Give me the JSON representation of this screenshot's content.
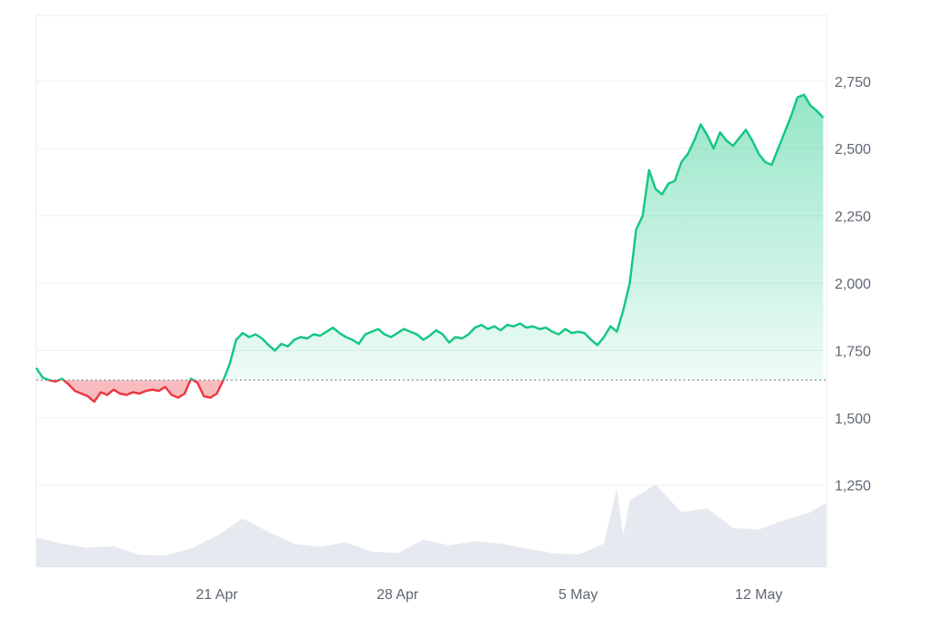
{
  "chart_data": {
    "type": "area",
    "title": "",
    "xlabel": "",
    "ylabel": "",
    "ylim": [
      1000,
      3000
    ],
    "xlim_days": [
      "2024-04-14",
      "2024-05-14"
    ],
    "y_ticks": [
      1250,
      1500,
      1750,
      2000,
      2250,
      2500,
      2750
    ],
    "y_tick_labels": [
      "1,250",
      "1,500",
      "1,750",
      "2,000",
      "2,250",
      "2,500",
      "2,750"
    ],
    "x_ticks": [
      "2024-04-21",
      "2024-04-28",
      "2024-05-05",
      "2024-05-12"
    ],
    "x_tick_labels": [
      "21 Apr",
      "28 Apr",
      "5 May",
      "12 May"
    ],
    "baseline": 1640,
    "colors": {
      "up": "#16c784",
      "down": "#ea3943",
      "volume": "#e6e9ef",
      "grid": "#eef0f3",
      "baseline": "#8a8f98"
    },
    "grid": true,
    "legend": "none",
    "series": [
      {
        "values": [
          [
            "2024-04-14T00:00",
            1685
          ],
          [
            "2024-04-14T06:00",
            1650
          ],
          [
            "2024-04-14T12:00",
            1640
          ],
          [
            "2024-04-14T18:00",
            1635
          ],
          [
            "2024-04-15T00:00",
            1645
          ],
          [
            "2024-04-15T06:00",
            1625
          ],
          [
            "2024-04-15T12:00",
            1600
          ],
          [
            "2024-04-15T18:00",
            1590
          ],
          [
            "2024-04-16T00:00",
            1580
          ],
          [
            "2024-04-16T06:00",
            1560
          ],
          [
            "2024-04-16T12:00",
            1595
          ],
          [
            "2024-04-16T18:00",
            1585
          ],
          [
            "2024-04-17T00:00",
            1605
          ],
          [
            "2024-04-17T06:00",
            1590
          ],
          [
            "2024-04-17T12:00",
            1585
          ],
          [
            "2024-04-17T18:00",
            1595
          ],
          [
            "2024-04-18T00:00",
            1590
          ],
          [
            "2024-04-18T06:00",
            1600
          ],
          [
            "2024-04-18T12:00",
            1605
          ],
          [
            "2024-04-18T18:00",
            1600
          ],
          [
            "2024-04-19T00:00",
            1615
          ],
          [
            "2024-04-19T06:00",
            1585
          ],
          [
            "2024-04-19T12:00",
            1575
          ],
          [
            "2024-04-19T18:00",
            1590
          ],
          [
            "2024-04-20T00:00",
            1645
          ],
          [
            "2024-04-20T06:00",
            1630
          ],
          [
            "2024-04-20T12:00",
            1580
          ],
          [
            "2024-04-20T18:00",
            1575
          ],
          [
            "2024-04-21T00:00",
            1590
          ],
          [
            "2024-04-21T06:00",
            1640
          ],
          [
            "2024-04-21T12:00",
            1700
          ],
          [
            "2024-04-21T18:00",
            1790
          ],
          [
            "2024-04-22T00:00",
            1815
          ],
          [
            "2024-04-22T06:00",
            1800
          ],
          [
            "2024-04-22T12:00",
            1810
          ],
          [
            "2024-04-22T18:00",
            1795
          ],
          [
            "2024-04-23T00:00",
            1770
          ],
          [
            "2024-04-23T06:00",
            1750
          ],
          [
            "2024-04-23T12:00",
            1775
          ],
          [
            "2024-04-23T18:00",
            1765
          ],
          [
            "2024-04-24T00:00",
            1790
          ],
          [
            "2024-04-24T06:00",
            1800
          ],
          [
            "2024-04-24T12:00",
            1795
          ],
          [
            "2024-04-24T18:00",
            1810
          ],
          [
            "2024-04-25T00:00",
            1805
          ],
          [
            "2024-04-25T06:00",
            1820
          ],
          [
            "2024-04-25T12:00",
            1835
          ],
          [
            "2024-04-25T18:00",
            1815
          ],
          [
            "2024-04-26T00:00",
            1800
          ],
          [
            "2024-04-26T06:00",
            1790
          ],
          [
            "2024-04-26T12:00",
            1775
          ],
          [
            "2024-04-26T18:00",
            1810
          ],
          [
            "2024-04-27T00:00",
            1820
          ],
          [
            "2024-04-27T06:00",
            1830
          ],
          [
            "2024-04-27T12:00",
            1810
          ],
          [
            "2024-04-27T18:00",
            1800
          ],
          [
            "2024-04-28T00:00",
            1815
          ],
          [
            "2024-04-28T06:00",
            1830
          ],
          [
            "2024-04-28T12:00",
            1820
          ],
          [
            "2024-04-28T18:00",
            1810
          ],
          [
            "2024-04-29T00:00",
            1790
          ],
          [
            "2024-04-29T06:00",
            1805
          ],
          [
            "2024-04-29T12:00",
            1825
          ],
          [
            "2024-04-29T18:00",
            1810
          ],
          [
            "2024-04-30T00:00",
            1780
          ],
          [
            "2024-04-30T06:00",
            1800
          ],
          [
            "2024-04-30T12:00",
            1795
          ],
          [
            "2024-04-30T18:00",
            1810
          ],
          [
            "2024-05-01T00:00",
            1835
          ],
          [
            "2024-05-01T06:00",
            1845
          ],
          [
            "2024-05-01T12:00",
            1830
          ],
          [
            "2024-05-01T18:00",
            1840
          ],
          [
            "2024-05-02T00:00",
            1825
          ],
          [
            "2024-05-02T06:00",
            1845
          ],
          [
            "2024-05-02T12:00",
            1840
          ],
          [
            "2024-05-02T18:00",
            1850
          ],
          [
            "2024-05-03T00:00",
            1835
          ],
          [
            "2024-05-03T06:00",
            1840
          ],
          [
            "2024-05-03T12:00",
            1830
          ],
          [
            "2024-05-03T18:00",
            1835
          ],
          [
            "2024-05-04T00:00",
            1820
          ],
          [
            "2024-05-04T06:00",
            1810
          ],
          [
            "2024-05-04T12:00",
            1830
          ],
          [
            "2024-05-04T18:00",
            1815
          ],
          [
            "2024-05-05T00:00",
            1820
          ],
          [
            "2024-05-05T06:00",
            1815
          ],
          [
            "2024-05-05T12:00",
            1790
          ],
          [
            "2024-05-05T18:00",
            1770
          ],
          [
            "2024-05-06T00:00",
            1800
          ],
          [
            "2024-05-06T06:00",
            1840
          ],
          [
            "2024-05-06T12:00",
            1820
          ],
          [
            "2024-05-06T18:00",
            1900
          ],
          [
            "2024-05-07T00:00",
            2000
          ],
          [
            "2024-05-07T06:00",
            2200
          ],
          [
            "2024-05-07T12:00",
            2250
          ],
          [
            "2024-05-07T18:00",
            2420
          ],
          [
            "2024-05-08T00:00",
            2350
          ],
          [
            "2024-05-08T06:00",
            2330
          ],
          [
            "2024-05-08T12:00",
            2370
          ],
          [
            "2024-05-08T18:00",
            2380
          ],
          [
            "2024-05-09T00:00",
            2450
          ],
          [
            "2024-05-09T06:00",
            2480
          ],
          [
            "2024-05-09T12:00",
            2530
          ],
          [
            "2024-05-09T18:00",
            2590
          ],
          [
            "2024-05-10T00:00",
            2550
          ],
          [
            "2024-05-10T06:00",
            2500
          ],
          [
            "2024-05-10T12:00",
            2560
          ],
          [
            "2024-05-10T18:00",
            2530
          ],
          [
            "2024-05-11T00:00",
            2510
          ],
          [
            "2024-05-11T06:00",
            2540
          ],
          [
            "2024-05-11T12:00",
            2570
          ],
          [
            "2024-05-11T18:00",
            2530
          ],
          [
            "2024-05-12T00:00",
            2480
          ],
          [
            "2024-05-12T06:00",
            2450
          ],
          [
            "2024-05-12T12:00",
            2440
          ],
          [
            "2024-05-12T18:00",
            2500
          ],
          [
            "2024-05-13T00:00",
            2560
          ],
          [
            "2024-05-13T06:00",
            2620
          ],
          [
            "2024-05-13T12:00",
            2690
          ],
          [
            "2024-05-13T18:00",
            2700
          ],
          [
            "2024-05-14T00:00",
            2660
          ],
          [
            "2024-05-14T06:00",
            2640
          ],
          [
            "2024-05-14T12:00",
            2615
          ]
        ]
      }
    ],
    "volume": [
      [
        "2024-04-14T00:00",
        0.38
      ],
      [
        "2024-04-15T00:00",
        0.3
      ],
      [
        "2024-04-16T00:00",
        0.25
      ],
      [
        "2024-04-17T00:00",
        0.27
      ],
      [
        "2024-04-18T00:00",
        0.16
      ],
      [
        "2024-04-19T00:00",
        0.15
      ],
      [
        "2024-04-20T00:00",
        0.24
      ],
      [
        "2024-04-21T00:00",
        0.4
      ],
      [
        "2024-04-22T00:00",
        0.62
      ],
      [
        "2024-04-23T00:00",
        0.45
      ],
      [
        "2024-04-24T00:00",
        0.3
      ],
      [
        "2024-04-25T00:00",
        0.26
      ],
      [
        "2024-04-26T00:00",
        0.32
      ],
      [
        "2024-04-27T00:00",
        0.2
      ],
      [
        "2024-04-28T00:00",
        0.18
      ],
      [
        "2024-04-29T00:00",
        0.35
      ],
      [
        "2024-04-30T00:00",
        0.28
      ],
      [
        "2024-05-01T00:00",
        0.33
      ],
      [
        "2024-05-02T00:00",
        0.3
      ],
      [
        "2024-05-03T00:00",
        0.24
      ],
      [
        "2024-05-04T00:00",
        0.18
      ],
      [
        "2024-05-05T00:00",
        0.16
      ],
      [
        "2024-05-06T00:00",
        0.3
      ],
      [
        "2024-05-06T12:00",
        1.0
      ],
      [
        "2024-05-06T18:00",
        0.4
      ],
      [
        "2024-05-07T00:00",
        0.85
      ],
      [
        "2024-05-07T12:00",
        0.95
      ],
      [
        "2024-05-08T00:00",
        1.05
      ],
      [
        "2024-05-09T00:00",
        0.7
      ],
      [
        "2024-05-10T00:00",
        0.75
      ],
      [
        "2024-05-11T00:00",
        0.5
      ],
      [
        "2024-05-12T00:00",
        0.48
      ],
      [
        "2024-05-13T00:00",
        0.6
      ],
      [
        "2024-05-14T00:00",
        0.7
      ],
      [
        "2024-05-14T12:00",
        0.8
      ]
    ]
  }
}
